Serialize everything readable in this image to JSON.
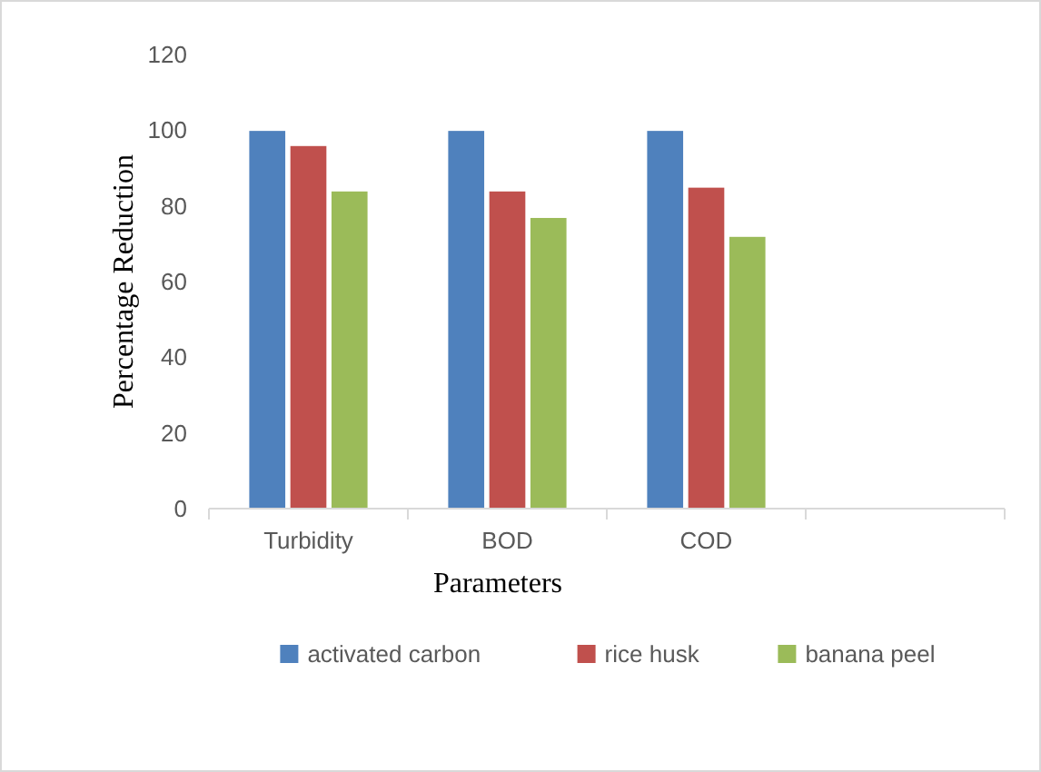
{
  "chart_data": {
    "type": "bar",
    "xlabel": "Parameters",
    "ylabel": "Percentage Reduction",
    "categories": [
      "Turbidity",
      "BOD",
      "COD",
      null
    ],
    "series": [
      {
        "name": "activated carbon",
        "color": "#4f81bd",
        "values": [
          100,
          100,
          100,
          null
        ]
      },
      {
        "name": "rice husk",
        "color": "#c0504d",
        "values": [
          96,
          84,
          85,
          null
        ]
      },
      {
        "name": "banana peel",
        "color": "#9bbb59",
        "values": [
          84,
          77,
          72,
          null
        ]
      }
    ],
    "ylim": [
      0,
      120
    ],
    "yticks": [
      0,
      20,
      40,
      60,
      80,
      100,
      120
    ],
    "grid": false,
    "legend": "bottom"
  }
}
